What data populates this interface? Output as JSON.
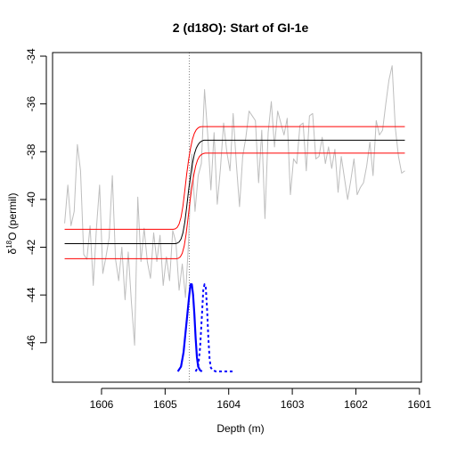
{
  "chart_data": {
    "type": "line",
    "title": "2 (d18O): Start of GI-1e",
    "xlabel": "Depth (m)",
    "ylabel_main": "δ",
    "ylabel_sup": "18",
    "ylabel_rest": "O (permil)",
    "x_reversed": true,
    "xlim": [
      1606.77,
      1600.97
    ],
    "ylim": [
      -47.65,
      -33.85
    ],
    "x_ticks": [
      1606,
      1605,
      1604,
      1603,
      1602,
      1601
    ],
    "y_ticks": [
      -46,
      -44,
      -42,
      -40,
      -38,
      -36,
      -34
    ],
    "grid": false,
    "colors": {
      "data": "#bebebe",
      "fit": "#000000",
      "ci": "#ff0000",
      "density": "#0000ff",
      "vline": "#808080"
    },
    "series": [
      {
        "role": "data",
        "x": [
          1606.58,
          1606.53,
          1606.48,
          1606.43,
          1606.38,
          1606.33,
          1606.28,
          1606.23,
          1606.18,
          1606.13,
          1606.08,
          1606.03,
          1605.98,
          1605.93,
          1605.88,
          1605.83,
          1605.78,
          1605.73,
          1605.68,
          1605.63,
          1605.58,
          1605.53,
          1605.48,
          1605.43,
          1605.38,
          1605.33,
          1605.28,
          1605.23,
          1605.18,
          1605.13,
          1605.08,
          1605.03,
          1604.98,
          1604.93,
          1604.88,
          1604.83,
          1604.78,
          1604.73,
          1604.68,
          1604.63,
          1604.58,
          1604.53,
          1604.48,
          1604.43,
          1604.38,
          1604.33,
          1604.28,
          1604.23,
          1604.18,
          1604.13,
          1604.08,
          1604.03,
          1603.98,
          1603.93,
          1603.88,
          1603.83,
          1603.78,
          1603.73,
          1603.68,
          1603.63,
          1603.58,
          1603.53,
          1603.48,
          1603.43,
          1603.38,
          1603.33,
          1603.28,
          1603.23,
          1603.18,
          1603.13,
          1603.08,
          1603.03,
          1602.98,
          1602.93,
          1602.88,
          1602.83,
          1602.78,
          1602.73,
          1602.68,
          1602.63,
          1602.58,
          1602.53,
          1602.48,
          1602.43,
          1602.38,
          1602.33,
          1602.28,
          1602.23,
          1602.18,
          1602.13,
          1602.08,
          1602.03,
          1601.98,
          1601.93,
          1601.88,
          1601.83,
          1601.78,
          1601.73,
          1601.68,
          1601.63,
          1601.58,
          1601.53,
          1601.48,
          1601.43,
          1601.38,
          1601.33,
          1601.28,
          1601.23
        ],
        "y": [
          -41.0,
          -39.4,
          -41.1,
          -40.5,
          -37.7,
          -38.8,
          -42.3,
          -42.5,
          -41.1,
          -43.6,
          -41.2,
          -39.4,
          -43.1,
          -42.4,
          -41.6,
          -39.0,
          -42.5,
          -43.4,
          -42.0,
          -44.2,
          -42.2,
          -44.3,
          -46.1,
          -39.9,
          -42.6,
          -41.2,
          -42.6,
          -43.3,
          -41.4,
          -42.6,
          -41.5,
          -43.6,
          -42.4,
          -43.4,
          -41.3,
          -41.8,
          -43.8,
          -42.7,
          -44.1,
          -41.7,
          -38.1,
          -40.5,
          -39.0,
          -38.5,
          -35.4,
          -37.3,
          -39.6,
          -37.2,
          -40.2,
          -38.7,
          -36.8,
          -38.0,
          -38.8,
          -36.4,
          -38.5,
          -40.3,
          -38.2,
          -37.4,
          -36.3,
          -36.5,
          -36.7,
          -39.3,
          -37.1,
          -40.8,
          -37.2,
          -35.9,
          -37.8,
          -36.3,
          -36.8,
          -37.3,
          -36.6,
          -39.8,
          -38.3,
          -38.5,
          -36.9,
          -36.8,
          -38.8,
          -36.5,
          -36.4,
          -38.3,
          -38.2,
          -37.4,
          -38.5,
          -37.8,
          -38.7,
          -37.9,
          -39.7,
          -38.2,
          -39.1,
          -40.0,
          -39.2,
          -38.3,
          -39.8,
          -39.5,
          -39.3,
          -38.6,
          -37.6,
          -39.0,
          -36.7,
          -37.3,
          -37.1,
          -36.0,
          -35.0,
          -34.4,
          -37.0,
          -38.2,
          -38.9,
          -38.8
        ]
      },
      {
        "role": "fit",
        "x": [
          1606.58,
          1604.84,
          1604.81,
          1604.78,
          1604.75,
          1604.72,
          1604.69,
          1604.66,
          1604.63,
          1604.6,
          1604.57,
          1604.54,
          1604.51,
          1604.48,
          1604.45,
          1604.42,
          1604.39,
          1601.23
        ],
        "y": [
          -41.85,
          -41.85,
          -41.83,
          -41.78,
          -41.66,
          -41.4,
          -40.95,
          -40.3,
          -39.6,
          -39.0,
          -38.5,
          -38.1,
          -37.85,
          -37.7,
          -37.6,
          -37.55,
          -37.52,
          -37.52
        ]
      },
      {
        "role": "ci_lower",
        "x": [
          1606.58,
          1604.82,
          1604.79,
          1604.76,
          1604.73,
          1604.7,
          1604.67,
          1604.64,
          1604.61,
          1604.58,
          1604.55,
          1604.52,
          1604.49,
          1604.46,
          1604.43,
          1604.4,
          1604.37,
          1601.23
        ],
        "y": [
          -42.48,
          -42.48,
          -42.46,
          -42.4,
          -42.25,
          -41.95,
          -41.45,
          -40.8,
          -40.1,
          -39.5,
          -39.0,
          -38.6,
          -38.35,
          -38.2,
          -38.12,
          -38.08,
          -38.06,
          -38.06
        ]
      },
      {
        "role": "ci_upper",
        "x": [
          1606.58,
          1604.87,
          1604.84,
          1604.81,
          1604.78,
          1604.75,
          1604.72,
          1604.69,
          1604.66,
          1604.63,
          1604.6,
          1604.57,
          1604.54,
          1604.51,
          1604.48,
          1604.45,
          1604.42,
          1601.23
        ],
        "y": [
          -41.25,
          -41.25,
          -41.23,
          -41.17,
          -41.03,
          -40.75,
          -40.28,
          -39.62,
          -38.92,
          -38.33,
          -37.85,
          -37.48,
          -37.23,
          -37.08,
          -37.0,
          -36.96,
          -36.95,
          -36.95
        ]
      },
      {
        "role": "density_solid",
        "x": [
          1604.8,
          1604.75,
          1604.71,
          1604.68,
          1604.65,
          1604.62,
          1604.6,
          1604.58,
          1604.56,
          1604.54,
          1604.52,
          1604.5,
          1604.48,
          1604.45,
          1604.42
        ],
        "y": [
          -47.2,
          -47.0,
          -46.4,
          -45.6,
          -44.8,
          -44.0,
          -43.55,
          -43.55,
          -44.0,
          -44.8,
          -45.8,
          -46.6,
          -47.0,
          -47.15,
          -47.2
        ]
      },
      {
        "role": "density_dotted",
        "x": [
          1604.52,
          1604.48,
          1604.45,
          1604.42,
          1604.4,
          1604.38,
          1604.36,
          1604.34,
          1604.32,
          1604.3,
          1604.28,
          1604.25,
          1604.2,
          1604.1,
          1604.0,
          1603.9
        ],
        "y": [
          -47.2,
          -47.0,
          -46.2,
          -44.8,
          -43.8,
          -43.55,
          -43.7,
          -44.6,
          -45.8,
          -46.7,
          -47.05,
          -47.15,
          -47.2,
          -47.2,
          -47.2,
          -47.2
        ]
      }
    ],
    "vline_x": 1604.62
  }
}
